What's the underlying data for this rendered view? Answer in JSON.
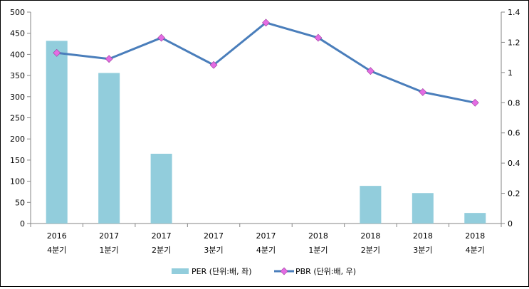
{
  "chart_data": {
    "type": "bar",
    "categories": [
      [
        "2016",
        "4분기"
      ],
      [
        "2017",
        "1분기"
      ],
      [
        "2017",
        "2분기"
      ],
      [
        "2017",
        "3분기"
      ],
      [
        "2017",
        "4분기"
      ],
      [
        "2018",
        "1분기"
      ],
      [
        "2018",
        "2분기"
      ],
      [
        "2018",
        "3분기"
      ],
      [
        "2018",
        "4분기"
      ]
    ],
    "series": [
      {
        "name": "PER (단위:배, 좌)",
        "kind": "bar",
        "axis": "left",
        "color": "#92cddc",
        "values": [
          432,
          356,
          165,
          0,
          0,
          0,
          89,
          72,
          25
        ]
      },
      {
        "name": "PBR (단위:배, 우)",
        "kind": "line",
        "axis": "right",
        "color": "#4a7ebb",
        "marker_color": "#e36ce3",
        "values": [
          1.13,
          1.09,
          1.23,
          1.05,
          1.33,
          1.23,
          1.01,
          0.87,
          0.8
        ]
      }
    ],
    "y_left": {
      "min": 0,
      "max": 500,
      "step": 50,
      "ticks": [
        "0",
        "50",
        "100",
        "150",
        "200",
        "250",
        "300",
        "350",
        "400",
        "450",
        "500"
      ]
    },
    "y_right": {
      "min": 0,
      "max": 1.4,
      "step": 0.2,
      "ticks": [
        "0",
        "0.2",
        "0.4",
        "0.6",
        "0.8",
        "1",
        "1.2",
        "1.4"
      ]
    },
    "legend": "bottom",
    "grid": false
  }
}
